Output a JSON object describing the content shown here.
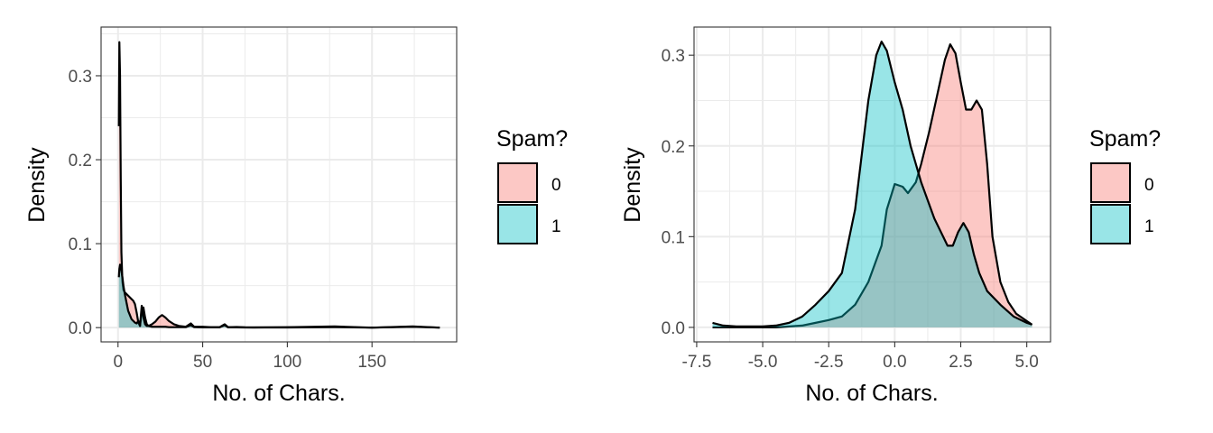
{
  "chart_data": [
    {
      "type": "area",
      "subtype": "density",
      "title": "",
      "xlabel": "No. of Chars.",
      "ylabel": "Density",
      "xlim": [
        -10,
        200
      ],
      "ylim": [
        -0.017,
        0.358
      ],
      "x_ticks": [
        0,
        50,
        100,
        150
      ],
      "x_tick_labels": [
        "0",
        "50",
        "100",
        "150"
      ],
      "y_ticks": [
        0.0,
        0.1,
        0.2,
        0.3
      ],
      "y_tick_labels": [
        "0.0",
        "0.1",
        "0.2",
        "0.3"
      ],
      "grid": true,
      "legend": {
        "title": "Spam?",
        "position": "right",
        "entries": [
          "0",
          "1"
        ]
      },
      "series": [
        {
          "name": "0",
          "color": "#F8766D",
          "x": [
            0.5,
            0.8,
            1.2,
            1.6,
            2.0,
            2.6,
            3.2,
            4,
            5,
            6,
            7,
            8,
            9,
            10,
            11,
            12,
            13,
            14,
            15,
            16,
            17,
            18,
            20,
            22,
            24,
            26,
            28,
            30,
            33,
            36,
            40,
            43,
            45,
            50,
            55,
            60,
            63,
            65,
            70,
            75,
            80,
            100,
            128,
            150,
            174,
            190
          ],
          "y": [
            0.24,
            0.34,
            0.3,
            0.18,
            0.09,
            0.055,
            0.045,
            0.042,
            0.04,
            0.038,
            0.036,
            0.034,
            0.032,
            0.028,
            0.018,
            0.006,
            0.002,
            0.02,
            0.024,
            0.012,
            0.004,
            0.002,
            0.004,
            0.007,
            0.012,
            0.015,
            0.012,
            0.008,
            0.004,
            0.002,
            0.001,
            0.005,
            0.001,
            0.001,
            0.0005,
            0.0005,
            0.004,
            0.0005,
            0.0008,
            0.0003,
            0.0002,
            0.0005,
            0.0014,
            0.0,
            0.0014,
            0.0
          ]
        },
        {
          "name": "1",
          "color": "#00BFC4",
          "x": [
            0.5,
            0.8,
            1.2,
            1.6,
            2.0,
            2.6,
            3.2,
            4,
            5,
            6,
            7,
            8,
            9,
            10,
            11,
            12,
            13,
            14,
            15,
            16,
            17,
            18,
            20,
            22,
            24,
            26,
            28,
            30,
            33,
            36,
            40,
            43,
            45,
            50,
            55,
            60,
            63,
            65,
            70,
            75,
            80,
            100,
            128,
            150,
            174,
            190
          ],
          "y": [
            0.06,
            0.07,
            0.075,
            0.072,
            0.068,
            0.06,
            0.05,
            0.04,
            0.03,
            0.02,
            0.015,
            0.01,
            0.008,
            0.006,
            0.005,
            0.008,
            0.002,
            0.026,
            0.012,
            0.004,
            0.002,
            0.002,
            0.001,
            0.001,
            0.001,
            0.001,
            0.001,
            0.0005,
            0.0005,
            0.0005,
            0.0005,
            0.003,
            0.0005,
            0.0003,
            0.0003,
            0.0003,
            0.003,
            0.0003,
            0.0003,
            0.0002,
            0.0002,
            0.0002,
            0.0005,
            0.0,
            0.001,
            0.0
          ]
        }
      ]
    },
    {
      "type": "area",
      "subtype": "density",
      "title": "",
      "xlabel": "No. of Chars.",
      "ylabel": "Density",
      "xlim": [
        -7.6,
        5.9
      ],
      "ylim": [
        -0.016,
        0.331
      ],
      "x_ticks": [
        -7.5,
        -5.0,
        -2.5,
        0.0,
        2.5,
        5.0
      ],
      "x_tick_labels": [
        "-7.5",
        "-5.0",
        "-2.5",
        "0.0",
        "2.5",
        "5.0"
      ],
      "y_ticks": [
        0.0,
        0.1,
        0.2,
        0.3
      ],
      "y_tick_labels": [
        "0.0",
        "0.1",
        "0.2",
        "0.3"
      ],
      "grid": true,
      "legend": {
        "title": "Spam?",
        "position": "right",
        "entries": [
          "0",
          "1"
        ]
      },
      "series": [
        {
          "name": "0",
          "color": "#F8766D",
          "x": [
            -6.9,
            -6.5,
            -6.0,
            -5.5,
            -5.0,
            -4.5,
            -4.0,
            -3.5,
            -3.0,
            -2.5,
            -2.0,
            -1.5,
            -1.0,
            -0.5,
            -0.3,
            0.0,
            0.3,
            0.5,
            0.8,
            1.0,
            1.3,
            1.6,
            1.9,
            2.1,
            2.3,
            2.5,
            2.7,
            2.9,
            3.1,
            3.3,
            3.5,
            3.7,
            4.0,
            4.3,
            4.6,
            5.0,
            5.2
          ],
          "y": [
            0.0,
            0.0,
            0.0,
            0.0,
            0.0,
            0.0,
            0.001,
            0.002,
            0.005,
            0.008,
            0.012,
            0.025,
            0.05,
            0.09,
            0.13,
            0.158,
            0.155,
            0.148,
            0.16,
            0.18,
            0.215,
            0.255,
            0.295,
            0.312,
            0.302,
            0.27,
            0.24,
            0.24,
            0.25,
            0.24,
            0.18,
            0.1,
            0.05,
            0.028,
            0.015,
            0.007,
            0.003
          ]
        },
        {
          "name": "1",
          "color": "#00BFC4",
          "x": [
            -6.9,
            -6.5,
            -6.0,
            -5.5,
            -5.0,
            -4.5,
            -4.0,
            -3.5,
            -3.0,
            -2.5,
            -2.0,
            -1.5,
            -1.0,
            -0.7,
            -0.5,
            -0.3,
            0.0,
            0.3,
            0.6,
            1.0,
            1.5,
            2.0,
            2.2,
            2.4,
            2.6,
            2.8,
            3.0,
            3.2,
            3.5,
            4.0,
            4.5,
            5.0,
            5.2
          ],
          "y": [
            0.005,
            0.002,
            0.001,
            0.001,
            0.001,
            0.002,
            0.005,
            0.012,
            0.025,
            0.04,
            0.06,
            0.13,
            0.25,
            0.3,
            0.315,
            0.305,
            0.27,
            0.24,
            0.2,
            0.16,
            0.12,
            0.09,
            0.09,
            0.105,
            0.115,
            0.105,
            0.08,
            0.06,
            0.04,
            0.025,
            0.012,
            0.005,
            0.003
          ]
        }
      ]
    }
  ]
}
